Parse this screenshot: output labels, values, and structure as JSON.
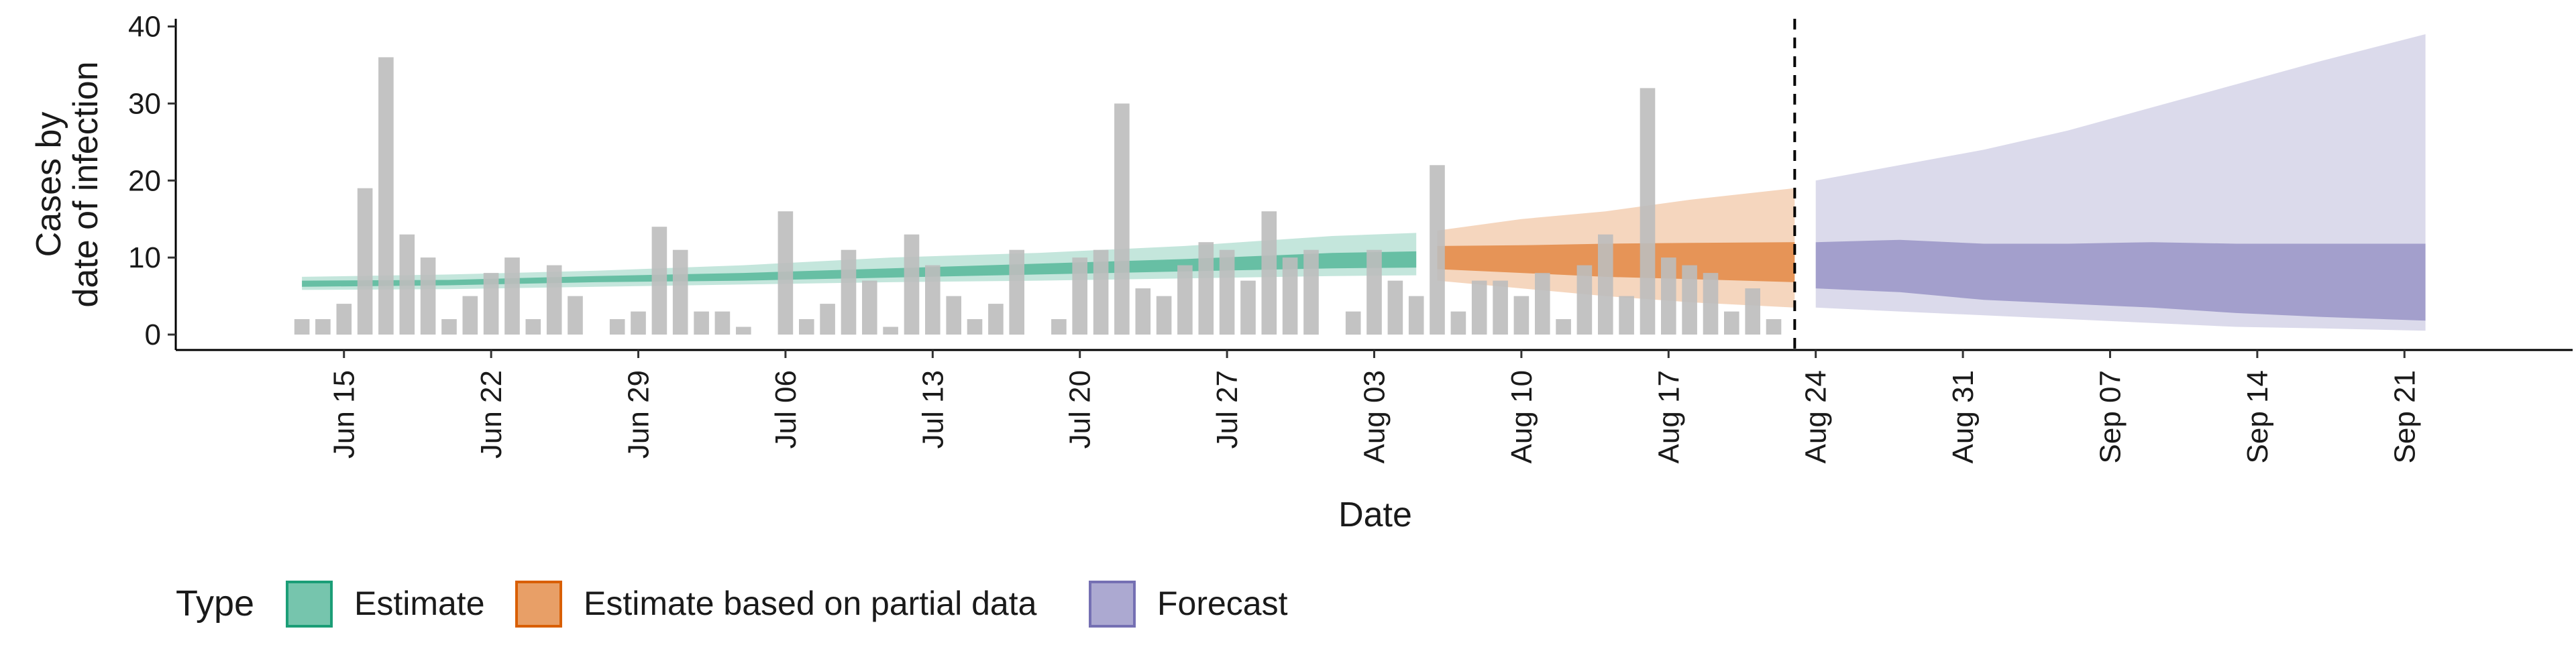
{
  "chart_data": {
    "type": "bar",
    "xlabel": "Date",
    "ylabel_lines": [
      "Cases by",
      "date of infection"
    ],
    "ylim": [
      -2,
      41
    ],
    "yticks": [
      0,
      10,
      20,
      30,
      40
    ],
    "xlim": [
      "2020-06-07",
      "2020-09-29"
    ],
    "xticks": [
      {
        "date": "2020-06-15",
        "label": "Jun 15"
      },
      {
        "date": "2020-06-22",
        "label": "Jun 22"
      },
      {
        "date": "2020-06-29",
        "label": "Jun 29"
      },
      {
        "date": "2020-07-06",
        "label": "Jul 06"
      },
      {
        "date": "2020-07-13",
        "label": "Jul 13"
      },
      {
        "date": "2020-07-20",
        "label": "Jul 20"
      },
      {
        "date": "2020-07-27",
        "label": "Jul 27"
      },
      {
        "date": "2020-08-03",
        "label": "Aug 03"
      },
      {
        "date": "2020-08-10",
        "label": "Aug 10"
      },
      {
        "date": "2020-08-17",
        "label": "Aug 17"
      },
      {
        "date": "2020-08-24",
        "label": "Aug 24"
      },
      {
        "date": "2020-08-31",
        "label": "Aug 31"
      },
      {
        "date": "2020-09-07",
        "label": "Sep 07"
      },
      {
        "date": "2020-09-14",
        "label": "Sep 14"
      },
      {
        "date": "2020-09-21",
        "label": "Sep 21"
      }
    ],
    "grid": false,
    "legend_position": "bottom",
    "legend_title": "Type",
    "vline_date": "2020-08-23",
    "bar_color": "#bdbdbd",
    "bars": {
      "dates": [
        "2020-06-13",
        "2020-06-14",
        "2020-06-15",
        "2020-06-16",
        "2020-06-17",
        "2020-06-18",
        "2020-06-19",
        "2020-06-20",
        "2020-06-21",
        "2020-06-22",
        "2020-06-23",
        "2020-06-24",
        "2020-06-25",
        "2020-06-26",
        "2020-06-27",
        "2020-06-28",
        "2020-06-29",
        "2020-06-30",
        "2020-07-01",
        "2020-07-02",
        "2020-07-03",
        "2020-07-04",
        "2020-07-05",
        "2020-07-06",
        "2020-07-07",
        "2020-07-08",
        "2020-07-09",
        "2020-07-10",
        "2020-07-11",
        "2020-07-12",
        "2020-07-13",
        "2020-07-14",
        "2020-07-15",
        "2020-07-16",
        "2020-07-17",
        "2020-07-18",
        "2020-07-19",
        "2020-07-20",
        "2020-07-21",
        "2020-07-22",
        "2020-07-23",
        "2020-07-24",
        "2020-07-25",
        "2020-07-26",
        "2020-07-27",
        "2020-07-28",
        "2020-07-29",
        "2020-07-30",
        "2020-07-31",
        "2020-08-01",
        "2020-08-02",
        "2020-08-03",
        "2020-08-04",
        "2020-08-05",
        "2020-08-06",
        "2020-08-07",
        "2020-08-08",
        "2020-08-09",
        "2020-08-10",
        "2020-08-11",
        "2020-08-12",
        "2020-08-13",
        "2020-08-14",
        "2020-08-15",
        "2020-08-16",
        "2020-08-17",
        "2020-08-18",
        "2020-08-19",
        "2020-08-20",
        "2020-08-21",
        "2020-08-22",
        "2020-08-23"
      ],
      "values": [
        2,
        2,
        4,
        19,
        36,
        13,
        10,
        2,
        5,
        8,
        10,
        2,
        9,
        5,
        0,
        2,
        3,
        14,
        11,
        3,
        3,
        1,
        0,
        16,
        2,
        4,
        11,
        7,
        1,
        13,
        9,
        5,
        2,
        4,
        11,
        0,
        2,
        10,
        11,
        30,
        6,
        5,
        9,
        12,
        11,
        7,
        16,
        10,
        11,
        0,
        3,
        11,
        7,
        5,
        22,
        3,
        7,
        7,
        5,
        8,
        2,
        9,
        13,
        5,
        32,
        10,
        9,
        8,
        3,
        6,
        2,
        0
      ]
    },
    "series": [
      {
        "name": "Estimate",
        "color": "#1b9e77",
        "x": [
          "2020-06-13",
          "2020-06-20",
          "2020-06-27",
          "2020-07-04",
          "2020-07-11",
          "2020-07-18",
          "2020-07-25",
          "2020-08-01",
          "2020-08-05"
        ],
        "outer_upper": [
          7.5,
          7.8,
          8.3,
          9.0,
          10.0,
          10.6,
          11.5,
          12.8,
          13.2
        ],
        "inner_upper": [
          7.0,
          7.1,
          7.6,
          8.0,
          8.6,
          9.2,
          9.8,
          10.6,
          10.8
        ],
        "inner_lower": [
          6.2,
          6.4,
          6.8,
          7.0,
          7.4,
          7.8,
          8.2,
          8.6,
          8.7
        ],
        "outer_lower": [
          5.8,
          5.9,
          6.2,
          6.5,
          6.8,
          7.0,
          7.3,
          7.6,
          7.7
        ]
      },
      {
        "name": "Estimate based on partial data",
        "color": "#d95f02",
        "x": [
          "2020-08-06",
          "2020-08-10",
          "2020-08-14",
          "2020-08-18",
          "2020-08-23"
        ],
        "outer_upper": [
          13.5,
          15.0,
          16.0,
          17.5,
          19.0
        ],
        "inner_upper": [
          11.5,
          11.6,
          11.8,
          11.9,
          12.0
        ],
        "inner_lower": [
          8.5,
          8.0,
          7.5,
          7.2,
          6.8
        ],
        "outer_lower": [
          7.0,
          6.0,
          5.0,
          4.2,
          3.5
        ]
      },
      {
        "name": "Forecast",
        "color": "#7570b3",
        "x": [
          "2020-08-24",
          "2020-08-28",
          "2020-09-01",
          "2020-09-05",
          "2020-09-09",
          "2020-09-13",
          "2020-09-17",
          "2020-09-22"
        ],
        "outer_upper": [
          20.0,
          22.0,
          24.0,
          26.5,
          29.5,
          32.5,
          35.5,
          39.0
        ],
        "inner_upper": [
          12.0,
          12.3,
          11.8,
          11.8,
          12.0,
          11.8,
          11.8,
          11.8
        ],
        "inner_lower": [
          6.0,
          5.5,
          4.5,
          4.0,
          3.5,
          2.8,
          2.3,
          1.8
        ],
        "outer_lower": [
          3.5,
          3.0,
          2.5,
          2.0,
          1.5,
          1.0,
          0.8,
          0.5
        ]
      }
    ]
  }
}
